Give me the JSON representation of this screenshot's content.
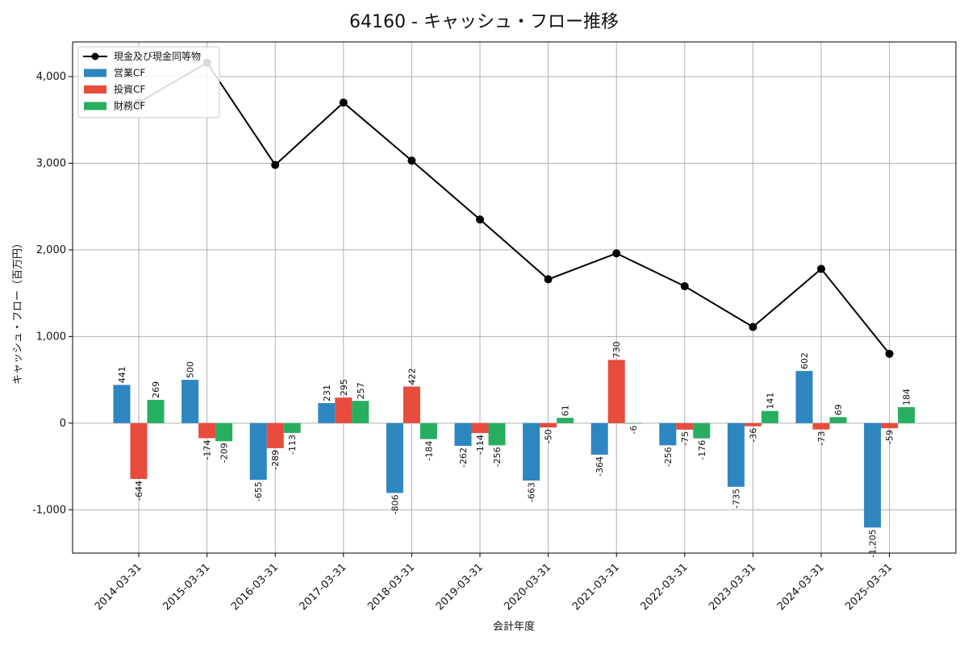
{
  "chart_data": {
    "type": "bar",
    "title": "64160 - キャッシュ・フロー推移",
    "xlabel": "会計年度",
    "ylabel": "キャッシュ・フロー（百万円）",
    "ylim": [
      -1500,
      4400
    ],
    "yticks": [
      -1000,
      0,
      1000,
      2000,
      3000,
      4000
    ],
    "ytick_labels": [
      "-1,000",
      "0",
      "1,000",
      "2,000",
      "3,000",
      "4,000"
    ],
    "grid": true,
    "legend_position": "top-left",
    "categories": [
      "2014-03-31",
      "2015-03-31",
      "2016-03-31",
      "2017-03-31",
      "2018-03-31",
      "2019-03-31",
      "2020-03-31",
      "2021-03-31",
      "2022-03-31",
      "2023-03-31",
      "2024-03-31",
      "2025-03-31"
    ],
    "series": [
      {
        "name": "営業CF",
        "kind": "bar",
        "color": "#2e86c1",
        "values": [
          441,
          500,
          -655,
          231,
          -806,
          -262,
          -663,
          -364,
          -256,
          -735,
          602,
          -1205
        ],
        "labels": [
          "441",
          "500",
          "-655",
          "231",
          "-806",
          "-262",
          "-663",
          "-364",
          "-256",
          "-735",
          "602",
          "-1,205"
        ]
      },
      {
        "name": "投資CF",
        "kind": "bar",
        "color": "#e74c3c",
        "values": [
          -644,
          -174,
          -289,
          295,
          422,
          -114,
          -50,
          730,
          -75,
          -36,
          -73,
          -59
        ],
        "labels": [
          "-644",
          "-174",
          "-289",
          "295",
          "422",
          "-114",
          "-50",
          "730",
          "-75",
          "-36",
          "-73",
          "-59"
        ]
      },
      {
        "name": "財務CF",
        "kind": "bar",
        "color": "#27ae60",
        "values": [
          269,
          -209,
          -113,
          257,
          -184,
          -256,
          61,
          -6,
          -176,
          141,
          69,
          184
        ],
        "labels": [
          "269",
          "-209",
          "-113",
          "257",
          "-184",
          "-256",
          "61",
          "-6",
          "-176",
          "141",
          "69",
          "184"
        ]
      },
      {
        "name": "現金及び現金同等物",
        "kind": "line",
        "color": "#000000",
        "values": [
          3700,
          4160,
          2980,
          3700,
          3030,
          2350,
          1660,
          1960,
          1580,
          1110,
          1780,
          800
        ]
      }
    ]
  }
}
